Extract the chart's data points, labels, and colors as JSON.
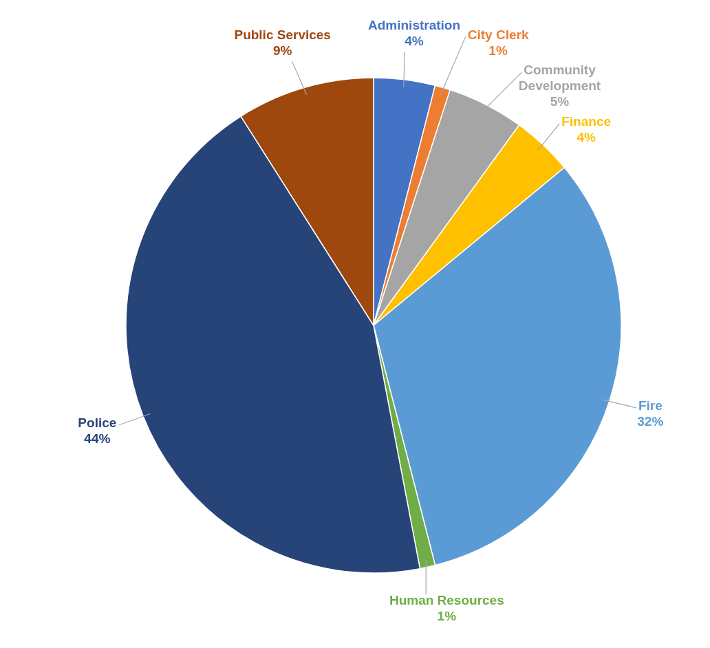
{
  "chart_data": {
    "type": "pie",
    "categories": [
      "Administration",
      "City Clerk",
      "Community Development",
      "Finance",
      "Fire",
      "Human Resources",
      "Police",
      "Public Services"
    ],
    "values": [
      4,
      1,
      5,
      4,
      32,
      1,
      44,
      9
    ],
    "value_labels": [
      "4%",
      "1%",
      "5%",
      "4%",
      "32%",
      "1%",
      "44%",
      "9%"
    ],
    "colors": [
      "#4472c4",
      "#ed7d31",
      "#a5a5a5",
      "#ffc000",
      "#5b9bd5",
      "#70ad47",
      "#264478",
      "#9e480e"
    ],
    "legend": false
  }
}
